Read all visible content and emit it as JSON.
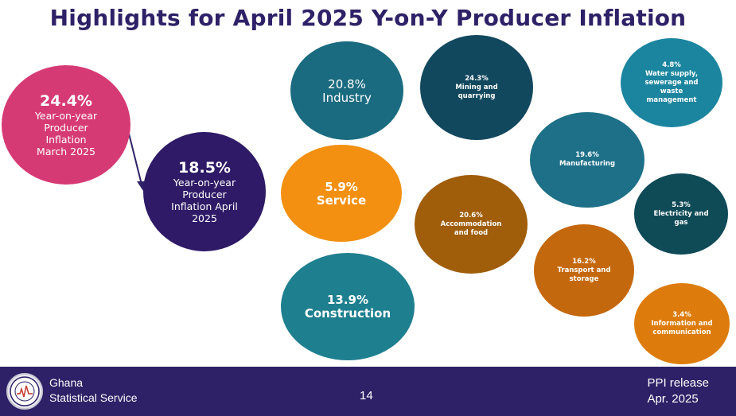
{
  "title": "Highlights for April 2025 Y-on-Y Producer Inflation",
  "headline": {
    "march": {
      "value": "24.4%",
      "label": "Year-on-year Producer Inflation March 2025",
      "color": "#d63a74"
    },
    "april": {
      "value": "18.5%",
      "label": "Year-on-year Producer Inflation April 2025",
      "color": "#2e1a66"
    }
  },
  "sectors": {
    "industry": {
      "value": "20.8%",
      "label": "Industry",
      "color": "#1a6b80"
    },
    "service": {
      "value": "5.9%",
      "label": "Service",
      "color": "#f39012"
    },
    "construction": {
      "value": "13.9%",
      "label": "Construction",
      "color": "#1e7f8f"
    }
  },
  "subsectors": {
    "mining": {
      "value": "24.3%",
      "label": "Mining and quarrying",
      "color": "#12485e"
    },
    "water": {
      "value": "4.8%",
      "label": "Water supply, sewerage and waste management",
      "color": "#1b85a0"
    },
    "manufacturing": {
      "value": "19.6%",
      "label": "Manufacturing",
      "color": "#1e7088"
    },
    "electricity": {
      "value": "5.3%",
      "label": "Electricity and gas",
      "color": "#0f4a57"
    },
    "accommodation": {
      "value": "20.6%",
      "label": "Accommodation and food",
      "color": "#a05d0a"
    },
    "transport": {
      "value": "16.2%",
      "label": "Transport and storage",
      "color": "#c4680d"
    },
    "information": {
      "value": "3.4%",
      "label": "Information and communication",
      "color": "#dd7c0c"
    }
  },
  "footer": {
    "org_line1": "Ghana",
    "org_line2": "Statistical Service",
    "page": "14",
    "release_line1": "PPI release",
    "release_line2": "Apr. 2025",
    "bg_color": "#2e2167"
  }
}
